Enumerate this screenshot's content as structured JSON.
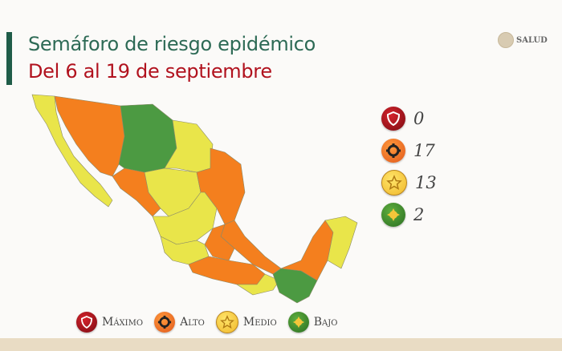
{
  "header": {
    "title": "Semáforo de riesgo epidémico",
    "subtitle": "Del 6 al 19 de septiembre",
    "logo_text": "SALUD"
  },
  "colors": {
    "maximo": "#b3121c",
    "alto": "#f47f1e",
    "medio": "#e9e54a",
    "bajo": "#4c9a42",
    "title": "#2d6a55",
    "subtitle": "#b1121e"
  },
  "counts": [
    {
      "level": "maximo",
      "icon": "shield-icon",
      "value": "0"
    },
    {
      "level": "alto",
      "icon": "gear-icon",
      "value": "17"
    },
    {
      "level": "medio",
      "icon": "star-icon",
      "value": "13"
    },
    {
      "level": "bajo",
      "icon": "sun-icon",
      "value": "2"
    }
  ],
  "legend": [
    {
      "level": "maximo",
      "icon": "shield-icon",
      "label": "Máximo"
    },
    {
      "level": "alto",
      "icon": "gear-icon",
      "label": "Alto"
    },
    {
      "level": "medio",
      "icon": "star-icon",
      "label": "Medio"
    },
    {
      "level": "bajo",
      "icon": "sun-icon",
      "label": "Bajo"
    }
  ]
}
